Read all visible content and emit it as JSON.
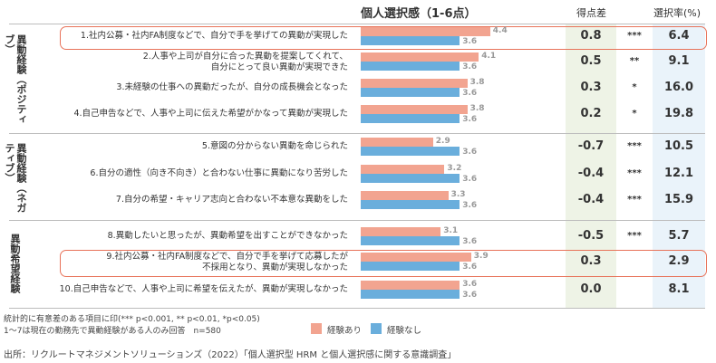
{
  "header": {
    "chart_title": "個人選択感（1-6点）",
    "diff_header": "得点差",
    "rate_header": "選択率(%)"
  },
  "groups": [
    {
      "label": "異動経験（ポジティブ）"
    },
    {
      "label": "異動経験（ネガティブ）"
    },
    {
      "label": "異動希望経験"
    }
  ],
  "colors": {
    "with_transfer": "#f2a490",
    "without_transfer": "#6aaedc",
    "highlight_border": "#e8735a",
    "diff_column_bg": "#eef3e6",
    "rate_column_bg": "#eaf3fa"
  },
  "chart_data": {
    "type": "bar",
    "title": "個人選択感（1-6点）",
    "xlim": [
      1,
      6
    ],
    "series": [
      {
        "name": "経験あり",
        "values": [
          4.4,
          4.1,
          3.8,
          3.8,
          2.9,
          3.2,
          3.3,
          3.1,
          3.9,
          3.6
        ]
      },
      {
        "name": "経験なし",
        "values": [
          3.6,
          3.6,
          3.6,
          3.6,
          3.6,
          3.6,
          3.6,
          3.6,
          3.6,
          3.6
        ]
      }
    ],
    "rows": [
      {
        "label": [
          "1.社内公募・社内FA制度などで、自分で手を挙げての異動が実現した"
        ],
        "diff": "0.8",
        "sig": "***",
        "rate": "6.4",
        "highlight": true
      },
      {
        "label": [
          "2.人事や上司が自分に合った異動を提案してくれて、",
          "自分にとって良い異動が実現できた"
        ],
        "diff": "0.5",
        "sig": "**",
        "rate": "9.1",
        "highlight": false
      },
      {
        "label": [
          "3.未経験の仕事への異動だったが、自分の成長機会となった"
        ],
        "diff": "0.3",
        "sig": "*",
        "rate": "16.0",
        "highlight": false
      },
      {
        "label": [
          "4.自己申告などで、人事や上司に伝えた希望がかなって異動が実現した"
        ],
        "diff": "0.2",
        "sig": "*",
        "rate": "19.8",
        "highlight": false
      },
      {
        "label": [
          "5.意図の分からない異動を命じられた"
        ],
        "diff": "-0.7",
        "sig": "***",
        "rate": "10.5",
        "highlight": false
      },
      {
        "label": [
          "6.自分の適性（向き不向き）と合わない仕事に異動になり苦労した"
        ],
        "diff": "-0.4",
        "sig": "***",
        "rate": "12.1",
        "highlight": false
      },
      {
        "label": [
          "7.自分の希望・キャリア志向と合わない不本意な異動をした"
        ],
        "diff": "-0.4",
        "sig": "***",
        "rate": "15.9",
        "highlight": false
      },
      {
        "label": [
          "8.異動したいと思ったが、異動希望を出すことができなかった"
        ],
        "diff": "-0.5",
        "sig": "***",
        "rate": "5.7",
        "highlight": false
      },
      {
        "label": [
          "9.社内公募・社内FA制度などで、自分で手を挙げて応募したが",
          "不採用となり、異動が実現しなかった"
        ],
        "diff": "0.3",
        "sig": "",
        "rate": "2.9",
        "highlight": true
      },
      {
        "label": [
          "10.自己申告などで、人事や上司に希望を伝えたが、異動が実現しなかった"
        ],
        "diff": "0.0",
        "sig": "",
        "rate": "8.1",
        "highlight": false
      }
    ]
  },
  "legend": {
    "with_label": "経験あり",
    "without_label": "経験なし"
  },
  "notes": {
    "significance": "統計的に有意差のある項目に印(*** p<0.001, ** p<0.01, *p<0.05)",
    "sample": "1～7は現在の勤務先で異動経験がある人のみ回答　n=580",
    "source": "出所：リクルートマネジメントソリューションズ（2022）「個人選択型 HRM と個人選択感に関する意識調査」"
  }
}
